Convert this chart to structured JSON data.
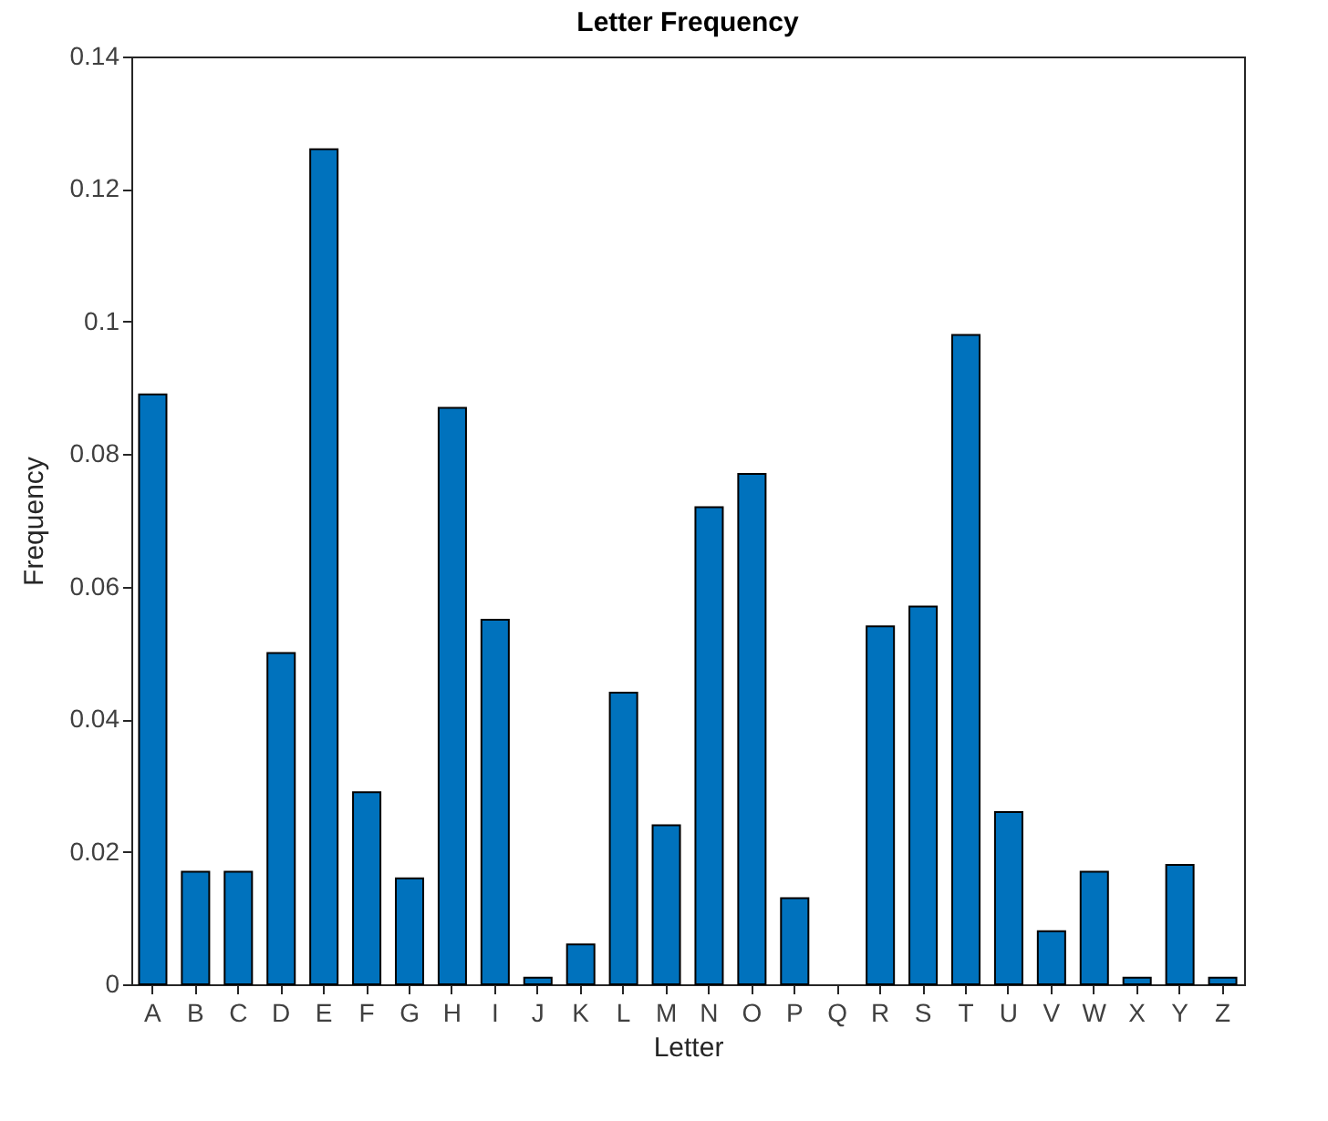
{
  "chart_data": {
    "type": "bar",
    "title": "Letter Frequency",
    "xlabel": "Letter",
    "ylabel": "Frequency",
    "categories": [
      "A",
      "B",
      "C",
      "D",
      "E",
      "F",
      "G",
      "H",
      "I",
      "J",
      "K",
      "L",
      "M",
      "N",
      "O",
      "P",
      "Q",
      "R",
      "S",
      "T",
      "U",
      "V",
      "W",
      "X",
      "Y",
      "Z"
    ],
    "values": [
      0.089,
      0.017,
      0.017,
      0.05,
      0.126,
      0.029,
      0.016,
      0.087,
      0.055,
      0.001,
      0.006,
      0.044,
      0.024,
      0.072,
      0.077,
      0.013,
      0,
      0.054,
      0.057,
      0.098,
      0.026,
      0.008,
      0.017,
      0.001,
      0.018,
      0.001
    ],
    "color": "#0072bd",
    "ylim": [
      0,
      0.14
    ],
    "yticks": [
      0,
      0.02,
      0.04,
      0.06,
      0.08,
      0.1,
      0.12,
      0.14
    ],
    "grid": false
  }
}
